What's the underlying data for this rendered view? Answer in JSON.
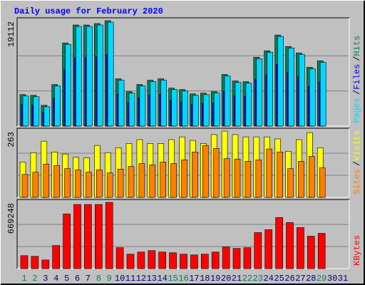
{
  "chart_data": {
    "type": "bar",
    "title": "Daily usage for February 2020",
    "categories": [
      "1",
      "2",
      "3",
      "4",
      "5",
      "6",
      "7",
      "8",
      "9",
      "10",
      "11",
      "12",
      "13",
      "14",
      "15",
      "16",
      "17",
      "18",
      "19",
      "20",
      "21",
      "22",
      "23",
      "24",
      "25",
      "26",
      "27",
      "28",
      "29",
      "30",
      "31"
    ],
    "weekend_days": [
      1,
      2,
      8,
      9,
      15,
      16,
      22,
      23,
      29
    ],
    "weekend_color": "#00805c",
    "weekday_color": "#000080",
    "legend_separator": "/",
    "panels": [
      {
        "ylim": [
          0,
          19112
        ],
        "yticks": [
          19112
        ],
        "series": [
          {
            "name": "Hits",
            "color": "#00805c",
            "values": [
              5720,
              5590,
              3770,
              7540,
              15080,
              18330,
              18330,
              18590,
              19112,
              8580,
              6240,
              7540,
              8320,
              8580,
              6890,
              6630,
              5850,
              5980,
              6240,
              9360,
              8190,
              8060,
              12480,
              13650,
              16510,
              14430,
              13260,
              10660,
              11830,
              null,
              null
            ]
          },
          {
            "name": "Files",
            "color": "#0000ff",
            "values": [
              3900,
              3800,
              2500,
              5100,
              10300,
              12400,
              12500,
              12600,
              13000,
              5800,
              4200,
              5100,
              5600,
              5800,
              4700,
              4500,
              4000,
              4100,
              4200,
              6300,
              5500,
              5400,
              8500,
              9300,
              11200,
              9800,
              9000,
              7200,
              8000,
              null,
              null
            ]
          },
          {
            "name": "Pages",
            "color": "#00d8ff",
            "values": [
              5460,
              5330,
              3510,
              7280,
              14820,
              18070,
              18070,
              18330,
              18850,
              8320,
              5980,
              7280,
              8060,
              8320,
              6630,
              6370,
              5590,
              5720,
              5980,
              9100,
              7930,
              7800,
              12220,
              13390,
              16250,
              14170,
              13000,
              10400,
              11570,
              null,
              null
            ]
          }
        ]
      },
      {
        "ylim": [
          0,
          263
        ],
        "yticks": [
          263
        ],
        "series": [
          {
            "name": "Visits",
            "color": "#ffff00",
            "values": [
              140,
              177,
              223,
              180,
              172,
              160,
              157,
              206,
              177,
              197,
              214,
              229,
              214,
              214,
              229,
              240,
              226,
              214,
              249,
              263,
              249,
              240,
              240,
              240,
              232,
              183,
              229,
              257,
              197,
              null,
              null
            ]
          },
          {
            "name": "Sites",
            "color": "#ff8000",
            "values": [
              91,
              100,
              132,
              126,
              114,
              109,
              100,
              109,
              97,
              112,
              123,
              134,
              129,
              140,
              134,
              149,
              180,
              206,
              194,
              154,
              152,
              143,
              149,
              192,
              180,
              114,
              143,
              163,
              117,
              null,
              null
            ]
          }
        ]
      },
      {
        "ylim": [
          0,
          669248
        ],
        "yticks": [
          669248
        ],
        "series": [
          {
            "name": "KBytes",
            "color": "#ff0000",
            "values": [
              130940,
              123660,
              87290,
              232780,
              552850,
              647420,
              647420,
              647420,
              669248,
              210960,
              145490,
              167310,
              181860,
              167310,
              160040,
              145490,
              138210,
              145490,
              167310,
              218230,
              203680,
              210960,
              363720,
              392820,
              516480,
              465560,
              414640,
              327350,
              356440,
              null,
              null
            ]
          }
        ]
      }
    ]
  }
}
